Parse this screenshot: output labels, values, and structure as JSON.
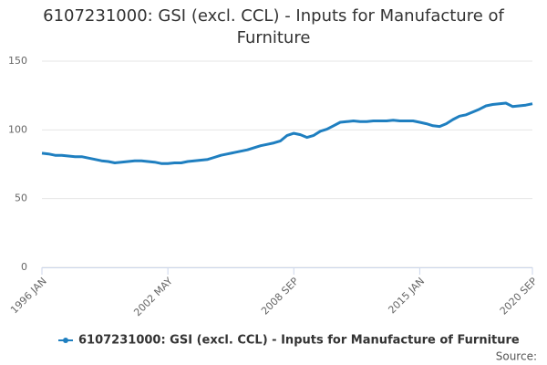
{
  "chart_data": {
    "type": "line",
    "title": "6107231000: GSI (excl. CCL) - Inputs for Manufacture of Furniture",
    "source": "Source:",
    "x": [
      "1996 JAN",
      "1996 MAY",
      "1996 SEP",
      "1997 JAN",
      "1997 MAY",
      "1997 SEP",
      "1998 JAN",
      "1998 MAY",
      "1998 SEP",
      "1999 JAN",
      "1999 MAY",
      "1999 SEP",
      "2000 JAN",
      "2000 MAY",
      "2000 SEP",
      "2001 JAN",
      "2001 MAY",
      "2001 SEP",
      "2002 JAN",
      "2002 MAY",
      "2002 SEP",
      "2003 JAN",
      "2003 MAY",
      "2003 SEP",
      "2004 JAN",
      "2004 MAY",
      "2004 SEP",
      "2005 JAN",
      "2005 MAY",
      "2005 SEP",
      "2006 JAN",
      "2006 MAY",
      "2006 SEP",
      "2007 JAN",
      "2007 MAY",
      "2007 SEP",
      "2008 JAN",
      "2008 MAY",
      "2008 SEP",
      "2009 JAN",
      "2009 MAY",
      "2009 SEP",
      "2010 JAN",
      "2010 MAY",
      "2010 SEP",
      "2011 JAN",
      "2011 MAY",
      "2011 SEP",
      "2012 JAN",
      "2012 MAY",
      "2012 SEP",
      "2013 JAN",
      "2013 MAY",
      "2013 SEP",
      "2014 JAN",
      "2014 MAY",
      "2014 SEP",
      "2015 JAN",
      "2015 MAY",
      "2015 SEP",
      "2016 JAN",
      "2016 MAY",
      "2016 SEP",
      "2017 JAN",
      "2017 MAY",
      "2017 SEP",
      "2018 JAN",
      "2018 MAY",
      "2018 SEP",
      "2019 JAN",
      "2019 MAY",
      "2019 SEP",
      "2020 JAN",
      "2020 MAY",
      "2020 SEP"
    ],
    "series": [
      {
        "name": "6107231000: GSI (excl. CCL) - Inputs for Manufacture of Furniture",
        "color": "#1f7fc0",
        "values": [
          83,
          82.5,
          81.5,
          81.5,
          81,
          80.5,
          80.5,
          79.5,
          78.5,
          77.5,
          77,
          76,
          76.5,
          77,
          77.5,
          77.5,
          77,
          76.5,
          75.5,
          75.5,
          76,
          76,
          77,
          77.5,
          78,
          78.5,
          80,
          81.5,
          82.5,
          83.5,
          84.5,
          85.5,
          87,
          88.5,
          89.5,
          90.5,
          92,
          96,
          97.5,
          96.5,
          94.5,
          96,
          99,
          100.5,
          103,
          105.5,
          106,
          106.5,
          106,
          106,
          106.5,
          106.5,
          106.5,
          107,
          106.5,
          106.5,
          106.5,
          105.5,
          104.5,
          103,
          102.5,
          104.5,
          107.5,
          110,
          111,
          113,
          115,
          117.5,
          118.5,
          119,
          119.5,
          117,
          117.5,
          118,
          119
        ]
      }
    ],
    "xticks": [
      "1996 JAN",
      "2002 MAY",
      "2008 SEP",
      "2015 JAN",
      "2020 SEP"
    ],
    "ylim": [
      0,
      150
    ],
    "yticks": [
      0,
      50,
      100,
      150
    ],
    "grid": true
  }
}
